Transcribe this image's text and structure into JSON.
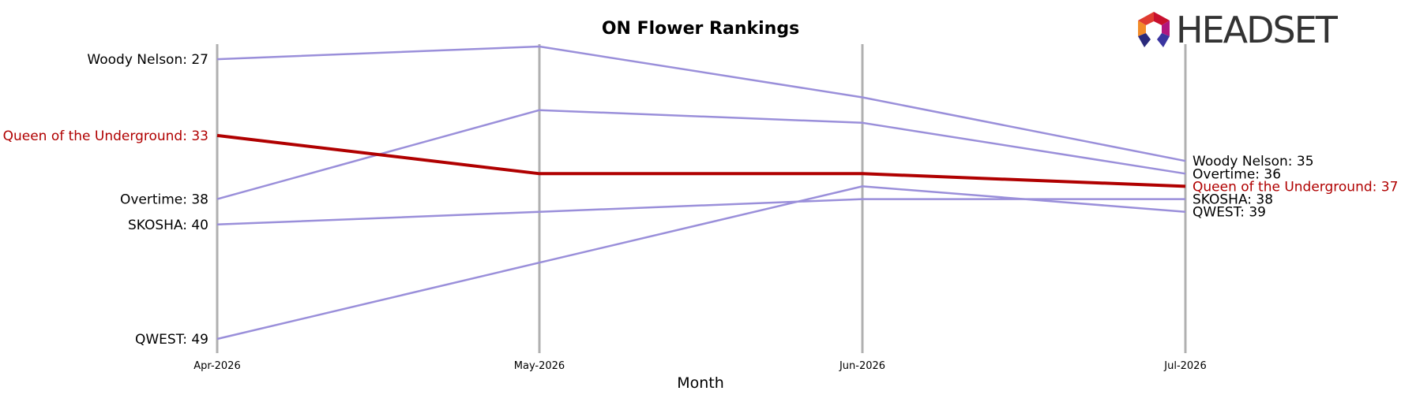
{
  "logo": {
    "text": "HEADSET"
  },
  "chart_data": {
    "type": "line",
    "title": "ON Flower Rankings",
    "xlabel": "Month",
    "ylabel": "",
    "categories": [
      "Apr-2026",
      "May-2026",
      "Jun-2026",
      "Jul-2026"
    ],
    "y_inverted": true,
    "ylim": [
      50,
      26
    ],
    "grid": false,
    "colors": {
      "default": "#9a8fda",
      "highlight": "#b00000",
      "gridline": "#b0b0b0"
    },
    "highlight_series": "Queen of the Underground",
    "series": [
      {
        "name": "Woody Nelson",
        "values": [
          27,
          26,
          30,
          35
        ]
      },
      {
        "name": "Queen of the Underground",
        "values": [
          33,
          36,
          36,
          37
        ]
      },
      {
        "name": "Overtime",
        "values": [
          38,
          31,
          32,
          36
        ]
      },
      {
        "name": "SKOSHA",
        "values": [
          40,
          39,
          38,
          38
        ]
      },
      {
        "name": "QWEST",
        "values": [
          49,
          43,
          37,
          39
        ]
      }
    ],
    "left_labels": [
      {
        "series": "Woody Nelson",
        "text": "Woody Nelson: 27"
      },
      {
        "series": "Queen of the Underground",
        "text": "Queen of the Underground: 33"
      },
      {
        "series": "Overtime",
        "text": "Overtime: 38"
      },
      {
        "series": "SKOSHA",
        "text": "SKOSHA: 40"
      },
      {
        "series": "QWEST",
        "text": "QWEST: 49"
      }
    ],
    "right_labels": [
      {
        "series": "Woody Nelson",
        "text": "Woody Nelson: 35"
      },
      {
        "series": "Overtime",
        "text": "Overtime: 36"
      },
      {
        "series": "Queen of the Underground",
        "text": "Queen of the Underground: 37"
      },
      {
        "series": "SKOSHA",
        "text": "SKOSHA: 38"
      },
      {
        "series": "QWEST",
        "text": "QWEST: 39"
      }
    ]
  }
}
